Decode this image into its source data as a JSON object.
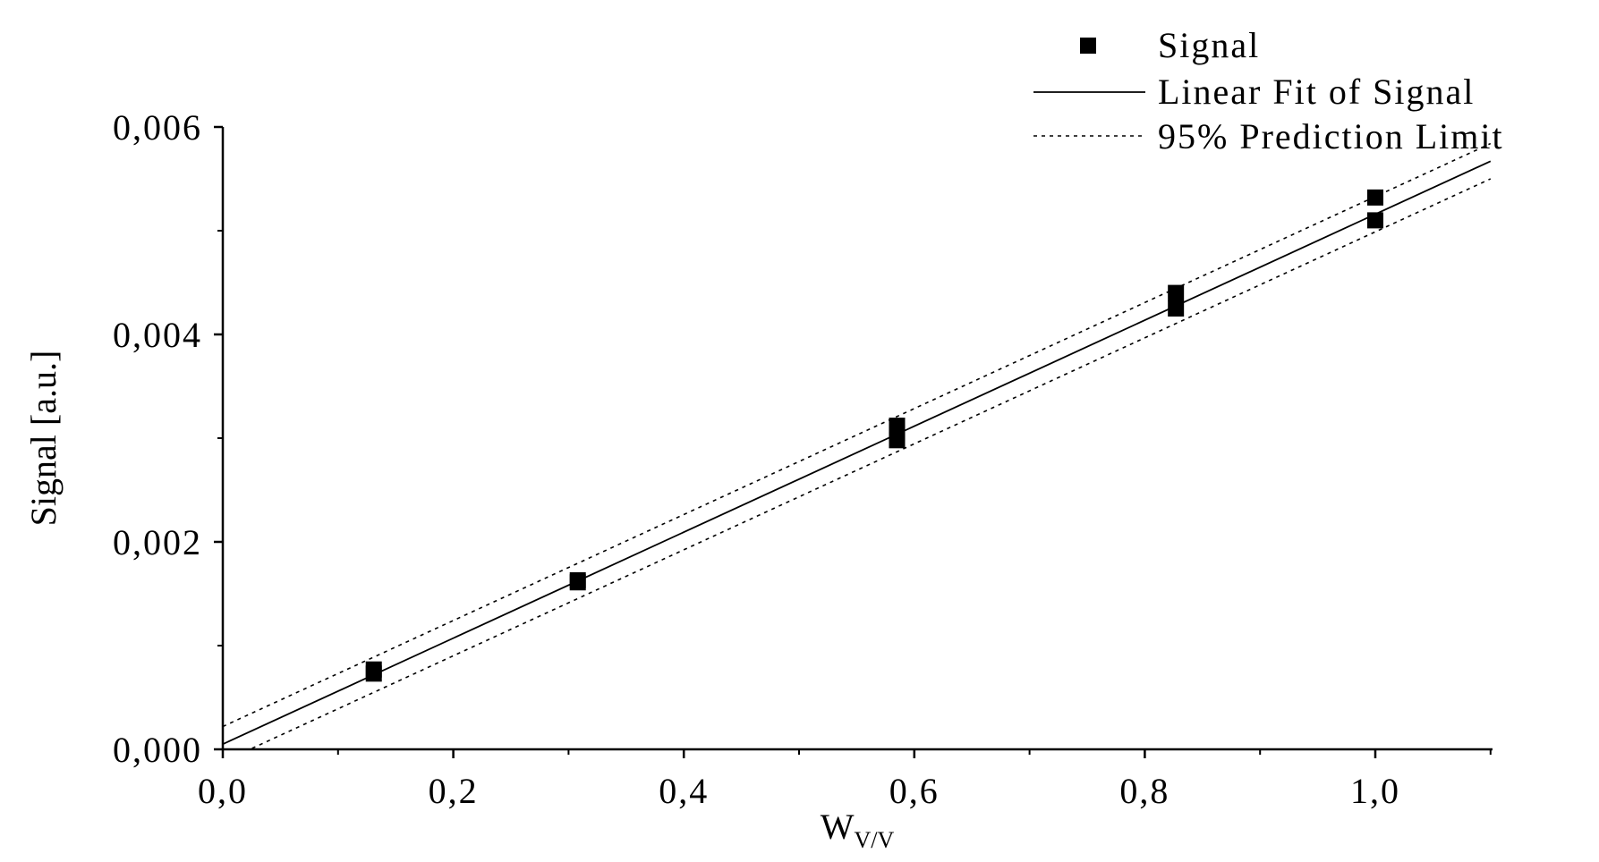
{
  "chart_data": {
    "type": "scatter",
    "title": "",
    "xlabel": {
      "main": "W",
      "sub": "V/V"
    },
    "ylabel": "Signal [a.u.]",
    "xlim": [
      0.0,
      1.1
    ],
    "ylim": [
      0.0,
      0.006
    ],
    "x_ticks": [
      {
        "value": 0.0,
        "label": "0,0"
      },
      {
        "value": 0.2,
        "label": "0,2"
      },
      {
        "value": 0.4,
        "label": "0,4"
      },
      {
        "value": 0.6,
        "label": "0,6"
      },
      {
        "value": 0.8,
        "label": "0,8"
      },
      {
        "value": 1.0,
        "label": "1,0"
      }
    ],
    "y_ticks": [
      {
        "value": 0.0,
        "label": "0,000"
      },
      {
        "value": 0.002,
        "label": "0,002"
      },
      {
        "value": 0.004,
        "label": "0,004"
      },
      {
        "value": 0.006,
        "label": "0,006"
      }
    ],
    "grid": false,
    "legend_position": "top-right",
    "series": [
      {
        "name": "Signal",
        "kind": "points",
        "marker": "square",
        "color": "#000000",
        "points": [
          {
            "x": 0.131,
            "y": 0.00073
          },
          {
            "x": 0.131,
            "y": 0.00077
          },
          {
            "x": 0.308,
            "y": 0.00161
          },
          {
            "x": 0.308,
            "y": 0.00163
          },
          {
            "x": 0.585,
            "y": 0.00298
          },
          {
            "x": 0.585,
            "y": 0.00305
          },
          {
            "x": 0.585,
            "y": 0.00312
          },
          {
            "x": 0.827,
            "y": 0.00425
          },
          {
            "x": 0.827,
            "y": 0.0044
          },
          {
            "x": 1.0,
            "y": 0.0051
          },
          {
            "x": 1.0,
            "y": 0.00532
          }
        ]
      },
      {
        "name": "Linear Fit of Signal",
        "kind": "line",
        "style": "solid",
        "color": "#000000",
        "points": [
          {
            "x": 0.0,
            "y": 5e-05
          },
          {
            "x": 1.1,
            "y": 0.00567
          }
        ]
      },
      {
        "name": "95% Prediction Limit",
        "kind": "line",
        "style": "dotted",
        "color": "#000000",
        "points": [
          {
            "x": 0.0,
            "y": 0.00022
          },
          {
            "x": 1.1,
            "y": 0.00584
          }
        ]
      },
      {
        "name": "",
        "kind": "line",
        "style": "dotted",
        "color": "#000000",
        "points": [
          {
            "x": 0.0,
            "y": -0.00012
          },
          {
            "x": 1.1,
            "y": 0.0055
          }
        ]
      }
    ]
  }
}
